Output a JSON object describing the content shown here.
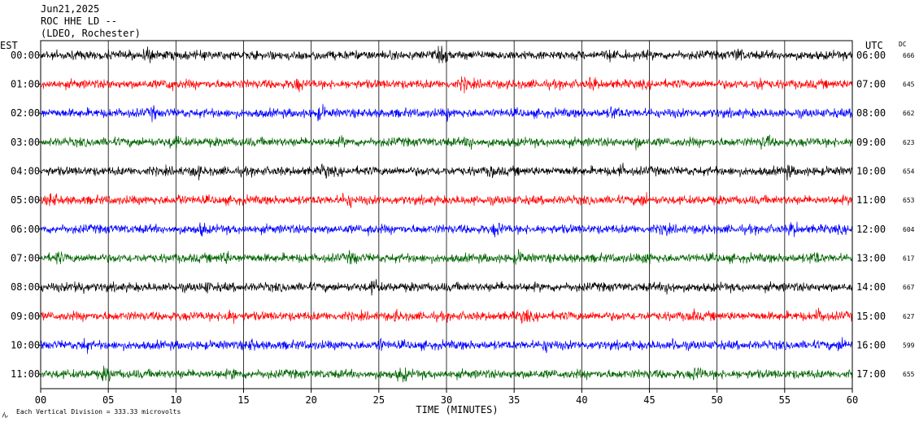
{
  "header": {
    "date": "Jun21,2025",
    "station": "ROC HHE LD --",
    "network": "(LDEO, Rochester)"
  },
  "left_axis_label": "EST",
  "right_axis_label": "UTC",
  "dc_label": "DC",
  "scale_note": "Each Vertical Division =  333.33 microvolts",
  "logo_text": "ん",
  "chart_data": {
    "type": "line",
    "title": "",
    "xlabel": "TIME (MINUTES)",
    "ylabel": "",
    "xlim": [
      0,
      60
    ],
    "x_ticks": [
      "00",
      "05",
      "10",
      "15",
      "20",
      "25",
      "30",
      "35",
      "40",
      "45",
      "50",
      "55",
      "60"
    ],
    "grid": true,
    "trace_colors": [
      "#000000",
      "#ff0000",
      "#0000ff",
      "#006400"
    ],
    "rows": [
      {
        "est": "00:00",
        "utc": "06:00",
        "dc": "666",
        "color": "#000000"
      },
      {
        "est": "01:00",
        "utc": "07:00",
        "dc": "645",
        "color": "#ff0000"
      },
      {
        "est": "02:00",
        "utc": "08:00",
        "dc": "662",
        "color": "#0000ff"
      },
      {
        "est": "03:00",
        "utc": "09:00",
        "dc": "623",
        "color": "#006400"
      },
      {
        "est": "04:00",
        "utc": "10:00",
        "dc": "654",
        "color": "#000000"
      },
      {
        "est": "05:00",
        "utc": "11:00",
        "dc": "653",
        "color": "#ff0000"
      },
      {
        "est": "06:00",
        "utc": "12:00",
        "dc": "604",
        "color": "#0000ff"
      },
      {
        "est": "07:00",
        "utc": "13:00",
        "dc": "617",
        "color": "#006400"
      },
      {
        "est": "08:00",
        "utc": "14:00",
        "dc": "667",
        "color": "#000000"
      },
      {
        "est": "09:00",
        "utc": "15:00",
        "dc": "627",
        "color": "#ff0000"
      },
      {
        "est": "10:00",
        "utc": "16:00",
        "dc": "599",
        "color": "#0000ff"
      },
      {
        "est": "11:00",
        "utc": "17:00",
        "dc": "655",
        "color": "#006400"
      }
    ]
  }
}
